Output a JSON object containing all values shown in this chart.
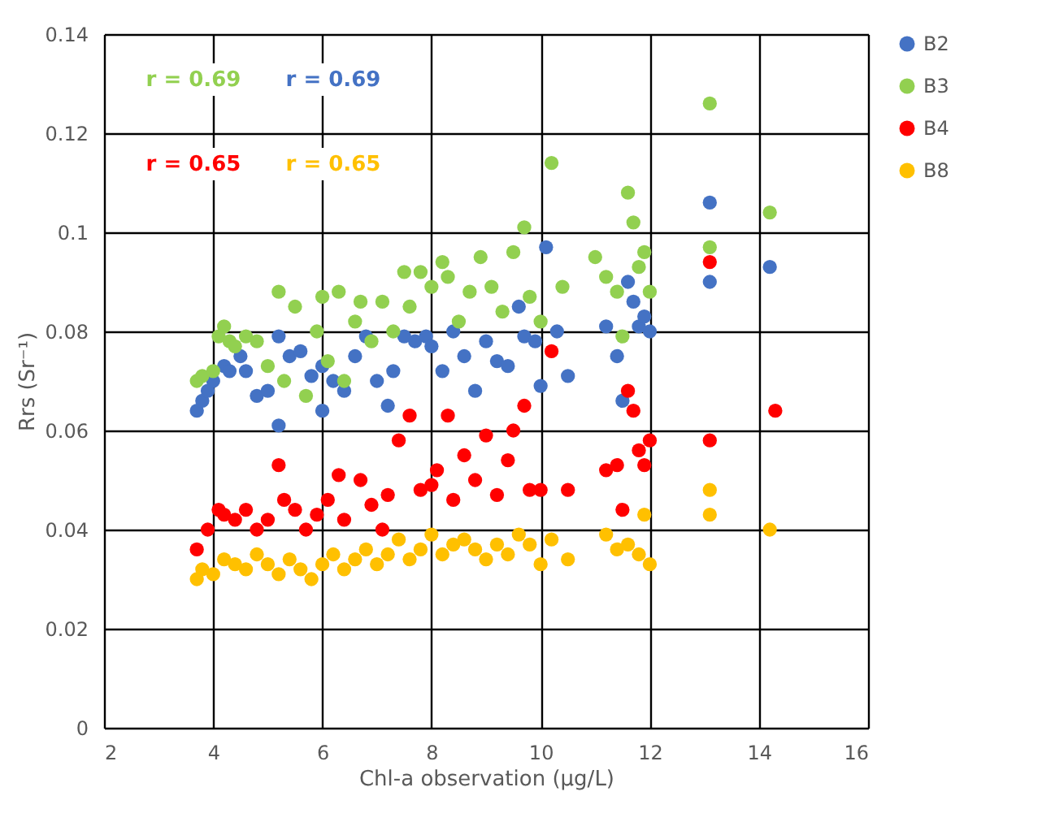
{
  "chart_data": {
    "type": "scatter",
    "xlabel": "Chl-a observation (μg/L)",
    "ylabel": "Rrs (Sr⁻¹)",
    "xlim": [
      2,
      16
    ],
    "xticks": [
      2,
      4,
      6,
      8,
      10,
      12,
      14,
      16
    ],
    "ylim": [
      0,
      0.14
    ],
    "yticks": [
      0,
      0.02,
      0.04,
      0.06,
      0.08,
      0.1,
      0.12,
      0.14
    ],
    "grid": true,
    "legend": "right",
    "marker": "circle",
    "annotations": [
      "r = 0.69",
      "r = 0.69",
      "r = 0.65",
      "r = 0.65"
    ],
    "series": [
      {
        "name": "B2",
        "color": "#4472c4",
        "x": [
          3.7,
          3.8,
          3.9,
          4.0,
          4.2,
          4.3,
          4.5,
          4.6,
          4.8,
          5.0,
          5.2,
          5.2,
          5.4,
          5.6,
          5.8,
          6.0,
          6.0,
          6.2,
          6.4,
          6.6,
          6.8,
          7.0,
          7.2,
          7.3,
          7.5,
          7.7,
          7.9,
          8.0,
          8.2,
          8.4,
          8.6,
          8.8,
          9.0,
          9.2,
          9.4,
          9.6,
          9.7,
          9.9,
          10.1,
          10.3,
          10.5,
          11.2,
          11.4,
          11.6,
          11.7,
          11.8,
          11.9,
          12.0,
          11.5,
          10.0,
          13.1,
          13.1,
          14.2
        ],
        "values": [
          0.064,
          0.066,
          0.068,
          0.07,
          0.073,
          0.072,
          0.075,
          0.072,
          0.067,
          0.068,
          0.079,
          0.061,
          0.075,
          0.076,
          0.071,
          0.073,
          0.064,
          0.07,
          0.068,
          0.075,
          0.079,
          0.07,
          0.065,
          0.072,
          0.079,
          0.078,
          0.079,
          0.077,
          0.072,
          0.08,
          0.075,
          0.068,
          0.078,
          0.074,
          0.073,
          0.085,
          0.079,
          0.078,
          0.097,
          0.08,
          0.071,
          0.081,
          0.075,
          0.09,
          0.086,
          0.081,
          0.083,
          0.08,
          0.066,
          0.069,
          0.106,
          0.09,
          0.093
        ]
      },
      {
        "name": "B3",
        "color": "#92d050",
        "x": [
          3.7,
          3.8,
          4.0,
          4.1,
          4.2,
          4.3,
          4.4,
          4.6,
          4.8,
          5.0,
          5.2,
          5.3,
          5.5,
          5.7,
          5.9,
          6.0,
          6.1,
          6.3,
          6.4,
          6.6,
          6.7,
          6.9,
          7.1,
          7.3,
          7.5,
          7.6,
          7.8,
          8.0,
          8.2,
          8.3,
          8.5,
          8.7,
          8.9,
          9.1,
          9.3,
          9.5,
          9.7,
          9.8,
          10.0,
          10.2,
          10.4,
          11.0,
          11.2,
          11.4,
          11.6,
          11.7,
          11.8,
          11.9,
          12.0,
          11.5,
          13.1,
          13.1,
          14.2
        ],
        "values": [
          0.07,
          0.071,
          0.072,
          0.079,
          0.081,
          0.078,
          0.077,
          0.079,
          0.078,
          0.073,
          0.088,
          0.07,
          0.085,
          0.067,
          0.08,
          0.087,
          0.074,
          0.088,
          0.07,
          0.082,
          0.086,
          0.078,
          0.086,
          0.08,
          0.092,
          0.085,
          0.092,
          0.089,
          0.094,
          0.091,
          0.082,
          0.088,
          0.095,
          0.089,
          0.084,
          0.096,
          0.101,
          0.087,
          0.082,
          0.114,
          0.089,
          0.095,
          0.091,
          0.088,
          0.108,
          0.102,
          0.093,
          0.096,
          0.088,
          0.079,
          0.126,
          0.097,
          0.104
        ]
      },
      {
        "name": "B4",
        "color": "#ff0000",
        "x": [
          3.7,
          3.9,
          4.1,
          4.2,
          4.4,
          4.6,
          4.8,
          5.0,
          5.2,
          5.3,
          5.5,
          5.7,
          5.9,
          6.1,
          6.3,
          6.4,
          6.7,
          6.9,
          7.1,
          7.2,
          7.4,
          7.6,
          7.8,
          8.0,
          8.1,
          8.3,
          8.4,
          8.6,
          8.8,
          9.0,
          9.2,
          9.4,
          9.5,
          9.7,
          9.8,
          10.0,
          10.2,
          10.5,
          11.2,
          11.4,
          11.5,
          11.6,
          11.7,
          11.8,
          11.9,
          12.0,
          13.1,
          13.1,
          14.3
        ],
        "values": [
          0.036,
          0.04,
          0.044,
          0.043,
          0.042,
          0.044,
          0.04,
          0.042,
          0.053,
          0.046,
          0.044,
          0.04,
          0.043,
          0.046,
          0.051,
          0.042,
          0.05,
          0.045,
          0.04,
          0.047,
          0.058,
          0.063,
          0.048,
          0.049,
          0.052,
          0.063,
          0.046,
          0.055,
          0.05,
          0.059,
          0.047,
          0.054,
          0.06,
          0.065,
          0.048,
          0.048,
          0.076,
          0.048,
          0.052,
          0.053,
          0.044,
          0.068,
          0.064,
          0.056,
          0.053,
          0.058,
          0.094,
          0.058,
          0.064
        ]
      },
      {
        "name": "B8",
        "color": "#ffc000",
        "x": [
          3.7,
          3.8,
          4.0,
          4.2,
          4.4,
          4.6,
          4.8,
          5.0,
          5.2,
          5.4,
          5.6,
          5.8,
          6.0,
          6.2,
          6.4,
          6.6,
          6.8,
          7.0,
          7.2,
          7.4,
          7.6,
          7.8,
          8.0,
          8.2,
          8.4,
          8.6,
          8.8,
          9.0,
          9.2,
          9.4,
          9.6,
          9.8,
          10.0,
          10.2,
          10.5,
          11.2,
          11.4,
          11.6,
          11.8,
          12.0,
          11.9,
          13.1,
          13.1,
          14.2
        ],
        "values": [
          0.03,
          0.032,
          0.031,
          0.034,
          0.033,
          0.032,
          0.035,
          0.033,
          0.031,
          0.034,
          0.032,
          0.03,
          0.033,
          0.035,
          0.032,
          0.034,
          0.036,
          0.033,
          0.035,
          0.038,
          0.034,
          0.036,
          0.039,
          0.035,
          0.037,
          0.038,
          0.036,
          0.034,
          0.037,
          0.035,
          0.039,
          0.037,
          0.033,
          0.038,
          0.034,
          0.039,
          0.036,
          0.037,
          0.035,
          0.033,
          0.043,
          0.048,
          0.043,
          0.04
        ]
      }
    ]
  }
}
